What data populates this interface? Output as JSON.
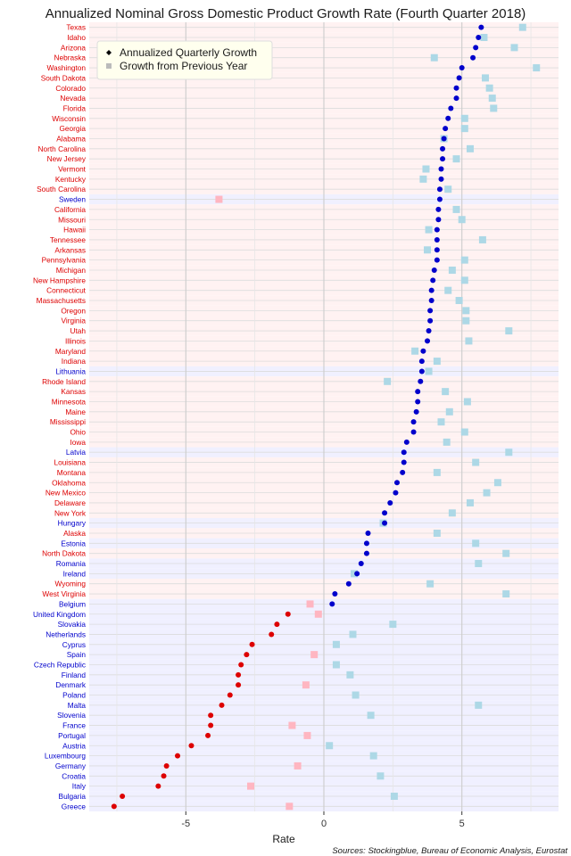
{
  "chart_data": {
    "type": "scatter",
    "title": "Annualized Nominal Gross Domestic Product Growth Rate (Fourth Quarter 2018)",
    "xlabel": "Rate",
    "source": "Sources: Stockingblue, Bureau of Economic Analysis, Eurostat",
    "xlim": [
      -8.5,
      8.5
    ],
    "xticks": [
      -5,
      0,
      5
    ],
    "grid": true,
    "legend": {
      "placement": "top-left",
      "entries": [
        "Annualized Quarterly Growth",
        "Growth from Previous Year"
      ]
    },
    "colors": {
      "us_label": "#dd0000",
      "eu_label": "#0000cc",
      "us_band": "#fff2f2",
      "eu_band": "#f0f0ff",
      "quarterly_positive": "#0000cc",
      "quarterly_negative": "#dd0000",
      "yearly_positive": "#add8e6",
      "yearly_negative": "#ffb6c1",
      "legend_bg": "#ffffee"
    },
    "categories": [
      "Texas",
      "Idaho",
      "Arizona",
      "Nebraska",
      "Washington",
      "South Dakota",
      "Colorado",
      "Nevada",
      "Florida",
      "Wisconsin",
      "Georgia",
      "Alabama",
      "North Carolina",
      "New Jersey",
      "Vermont",
      "Kentucky",
      "South Carolina",
      "Sweden",
      "California",
      "Missouri",
      "Hawaii",
      "Tennessee",
      "Arkansas",
      "Pennsylvania",
      "Michigan",
      "New Hampshire",
      "Connecticut",
      "Massachusetts",
      "Oregon",
      "Virginia",
      "Utah",
      "Illinois",
      "Maryland",
      "Indiana",
      "Lithuania",
      "Rhode Island",
      "Kansas",
      "Minnesota",
      "Maine",
      "Mississippi",
      "Ohio",
      "Iowa",
      "Latvia",
      "Louisiana",
      "Montana",
      "Oklahoma",
      "New Mexico",
      "Delaware",
      "New York",
      "Hungary",
      "Alaska",
      "Estonia",
      "North Dakota",
      "Romania",
      "Ireland",
      "Wyoming",
      "West Virginia",
      "Belgium",
      "United Kingdom",
      "Slovakia",
      "Netherlands",
      "Cyprus",
      "Spain",
      "Czech Republic",
      "Finland",
      "Denmark",
      "Poland",
      "Malta",
      "Slovenia",
      "France",
      "Portugal",
      "Austria",
      "Luxembourg",
      "Germany",
      "Croatia",
      "Italy",
      "Bulgaria",
      "Greece"
    ],
    "group": [
      "US",
      "US",
      "US",
      "US",
      "US",
      "US",
      "US",
      "US",
      "US",
      "US",
      "US",
      "US",
      "US",
      "US",
      "US",
      "US",
      "US",
      "EU",
      "US",
      "US",
      "US",
      "US",
      "US",
      "US",
      "US",
      "US",
      "US",
      "US",
      "US",
      "US",
      "US",
      "US",
      "US",
      "US",
      "EU",
      "US",
      "US",
      "US",
      "US",
      "US",
      "US",
      "US",
      "EU",
      "US",
      "US",
      "US",
      "US",
      "US",
      "US",
      "EU",
      "US",
      "EU",
      "US",
      "EU",
      "EU",
      "US",
      "US",
      "EU",
      "EU",
      "EU",
      "EU",
      "EU",
      "EU",
      "EU",
      "EU",
      "EU",
      "EU",
      "EU",
      "EU",
      "EU",
      "EU",
      "EU",
      "EU",
      "EU",
      "EU",
      "EU",
      "EU",
      "EU"
    ],
    "series": [
      {
        "name": "Annualized Quarterly Growth",
        "values": [
          5.7,
          5.6,
          5.5,
          5.4,
          5.0,
          4.9,
          4.8,
          4.8,
          4.6,
          4.5,
          4.4,
          4.35,
          4.3,
          4.3,
          4.25,
          4.25,
          4.2,
          4.2,
          4.15,
          4.15,
          4.1,
          4.1,
          4.1,
          4.1,
          4.0,
          3.95,
          3.9,
          3.9,
          3.85,
          3.85,
          3.8,
          3.75,
          3.6,
          3.55,
          3.55,
          3.5,
          3.4,
          3.4,
          3.35,
          3.25,
          3.25,
          3.0,
          2.9,
          2.9,
          2.85,
          2.65,
          2.6,
          2.4,
          2.2,
          2.2,
          1.6,
          1.55,
          1.55,
          1.35,
          1.2,
          0.9,
          0.4,
          0.3,
          -1.3,
          -1.7,
          -1.9,
          -2.6,
          -2.8,
          -3.0,
          -3.1,
          -3.1,
          -3.4,
          -3.7,
          -4.1,
          -4.1,
          -4.2,
          -4.8,
          -5.3,
          -5.7,
          -5.8,
          -6.0,
          -7.3,
          -7.6
        ]
      },
      {
        "name": "Growth from Previous Year",
        "values": [
          7.2,
          5.8,
          6.9,
          4.0,
          7.7,
          5.85,
          6.0,
          6.1,
          6.15,
          5.1,
          5.1,
          4.35,
          5.3,
          4.8,
          3.7,
          3.6,
          4.5,
          -3.8,
          4.8,
          5.0,
          3.8,
          5.75,
          3.75,
          5.1,
          4.65,
          5.1,
          4.5,
          4.9,
          5.15,
          5.15,
          6.7,
          5.25,
          3.3,
          4.1,
          3.8,
          2.3,
          4.4,
          5.2,
          4.55,
          4.25,
          5.1,
          4.45,
          6.7,
          5.5,
          4.1,
          6.3,
          5.9,
          5.3,
          4.65,
          2.15,
          4.1,
          5.5,
          6.6,
          5.6,
          1.1,
          3.85,
          6.6,
          -0.5,
          -0.2,
          2.5,
          1.05,
          0.45,
          -0.35,
          0.45,
          0.95,
          -0.65,
          1.15,
          5.6,
          1.7,
          -1.15,
          -0.6,
          0.2,
          1.8,
          -0.95,
          2.05,
          -2.65,
          2.55,
          -1.25
        ]
      }
    ]
  }
}
